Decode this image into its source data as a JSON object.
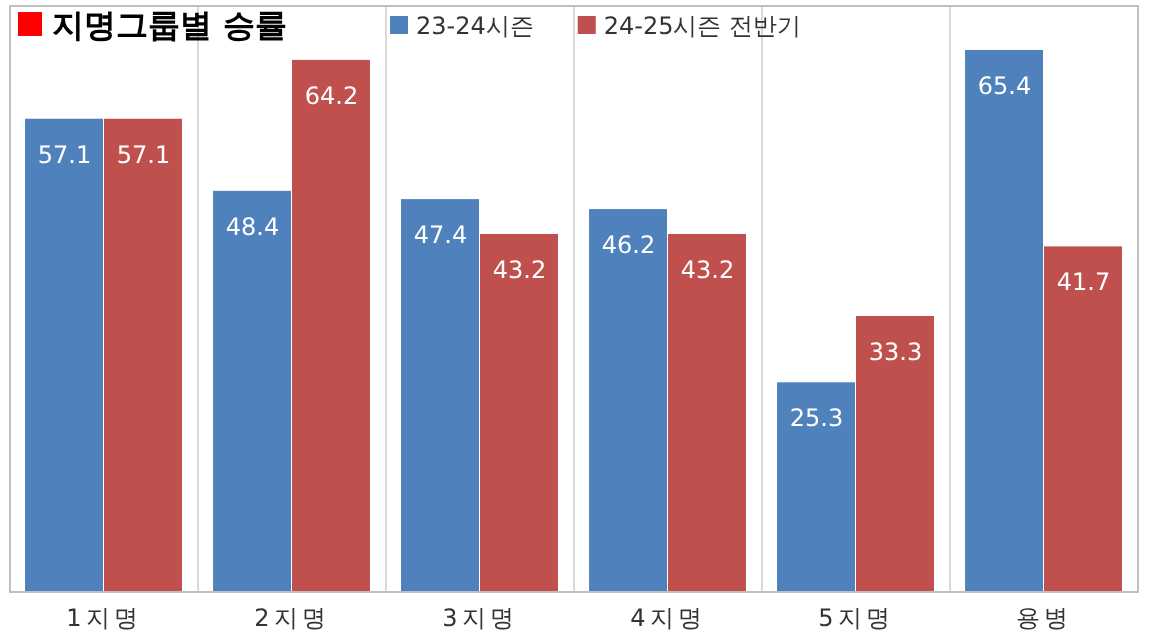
{
  "chart_data": {
    "type": "bar",
    "title": "지명그룹별 승률",
    "categories": [
      "1지명",
      "2지명",
      "3지명",
      "4지명",
      "5지명",
      "용병"
    ],
    "series": [
      {
        "name": "23-24시즌",
        "color": "#4f81bd",
        "values": [
          57.1,
          48.4,
          47.4,
          46.2,
          25.3,
          65.4
        ]
      },
      {
        "name": "24-25시즌 전반기",
        "color": "#c0504d",
        "values": [
          57.1,
          64.2,
          43.2,
          43.2,
          33.3,
          41.7
        ]
      }
    ],
    "data_labels": true,
    "grid": "x",
    "legend": "top"
  }
}
